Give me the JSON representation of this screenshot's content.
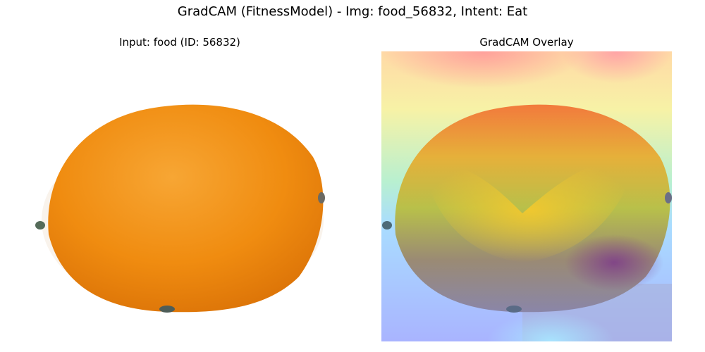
{
  "figure": {
    "suptitle": "GradCAM (FitnessModel) - Img: food_56832, Intent: Eat"
  },
  "panels": [
    {
      "title": "Input: food (ID: 56832)",
      "content": "orange-fruit-photo"
    },
    {
      "title": "GradCAM Overlay",
      "content": "gradcam-heatmap-overlay",
      "colormap": "jet"
    }
  ],
  "colors": {
    "orange_light": "#f7a634",
    "orange_mid": "#f08c10",
    "orange_dark": "#d86f06",
    "heat_red": "#ff6a6a",
    "heat_yellow": "#f2e24a",
    "heat_cyan": "#aee7ff",
    "heat_blue": "#9aa8ff",
    "heat_purple": "#8a3f8c"
  }
}
